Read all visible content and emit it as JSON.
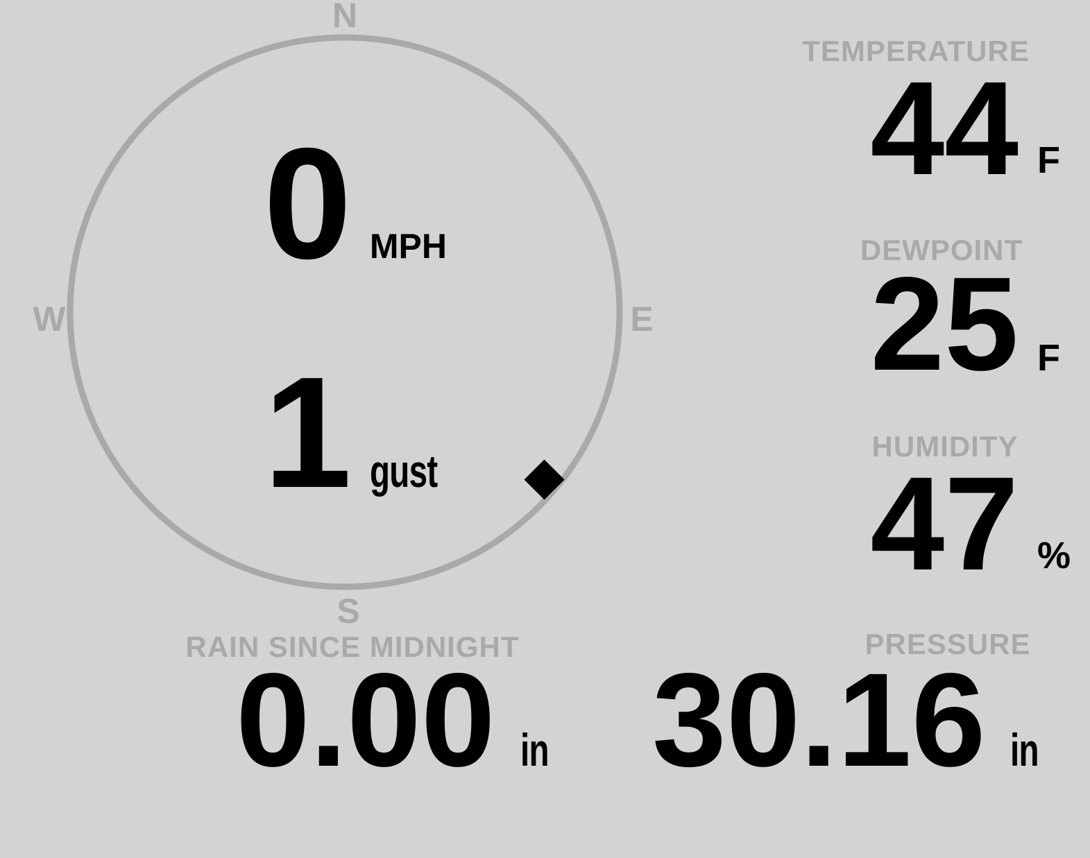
{
  "colors": {
    "background": "#d3d3d3",
    "muted": "#a9a9a9",
    "ink": "#000000"
  },
  "wind": {
    "compass": {
      "n": "N",
      "e": "E",
      "s": "S",
      "w": "W"
    },
    "speed": {
      "value": "0",
      "unit": "MPH"
    },
    "gust": {
      "value": "1",
      "unit": "gust"
    },
    "direction_deg": 130
  },
  "metrics": {
    "temperature": {
      "label": "TEMPERATURE",
      "value": "44",
      "unit": "F"
    },
    "dewpoint": {
      "label": "DEWPOINT",
      "value": "25",
      "unit": "F"
    },
    "humidity": {
      "label": "HUMIDITY",
      "value": "47",
      "unit": "%"
    },
    "rain": {
      "label": "RAIN SINCE MIDNIGHT",
      "value": "0.00",
      "unit": "in"
    },
    "pressure": {
      "label": "PRESSURE",
      "value": "30.16",
      "unit": "in"
    }
  }
}
